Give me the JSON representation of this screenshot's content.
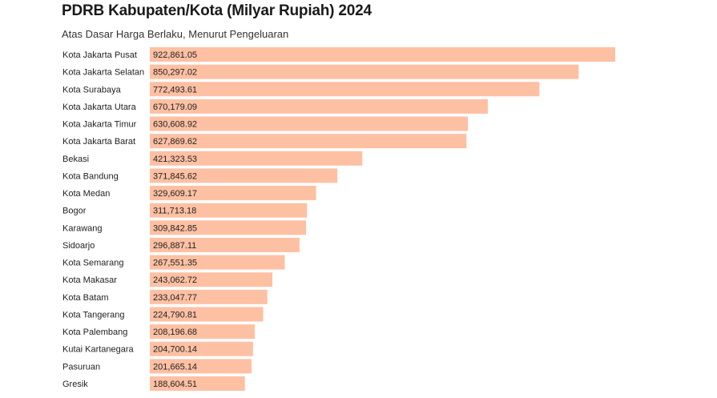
{
  "header": {
    "title": "PDRB Kabupaten/Kota (Milyar Rupiah) 2024",
    "subtitle": "Atas Dasar Harga Berlaku, Menurut Pengeluaran"
  },
  "colors": {
    "bar": "#fec0a3",
    "text": "#222222"
  },
  "chart_data": {
    "type": "bar",
    "orientation": "horizontal",
    "title": "PDRB Kabupaten/Kota (Milyar Rupiah) 2024",
    "subtitle": "Atas Dasar Harga Berlaku, Menurut Pengeluaran",
    "categories": [
      "Kota Jakarta Pusat",
      "Kota Jakarta Selatan",
      "Kota Surabaya",
      "Kota Jakarta Utara",
      "Kota Jakarta Timur",
      "Kota Jakarta Barat",
      "Bekasi",
      "Kota Bandung",
      "Kota Medan",
      "Bogor",
      "Karawang",
      "Sidoarjo",
      "Kota Semarang",
      "Kota Makasar",
      "Kota Batam",
      "Kota Tangerang",
      "Kota Palembang",
      "Kutai Kartanegara",
      "Pasuruan",
      "Gresik"
    ],
    "values": [
      922861.05,
      850297.02,
      772493.61,
      670179.09,
      630608.92,
      627869.62,
      421323.53,
      371845.62,
      329609.17,
      311713.18,
      309842.85,
      296887.11,
      267551.35,
      243062.72,
      233047.77,
      224790.81,
      208196.68,
      204700.14,
      201665.14,
      188604.51
    ],
    "value_labels": [
      "922,861.05",
      "850,297.02",
      "772,493.61",
      "670,179.09",
      "630,608.92",
      "627,869.62",
      "421,323.53",
      "371,845.62",
      "329,609.17",
      "311,713.18",
      "309,842.85",
      "296,887.11",
      "267,551.35",
      "243,062.72",
      "233,047.77",
      "224,790.81",
      "208,196.68",
      "204,700.14",
      "201,665.14",
      "188,604.51"
    ],
    "xlim": [
      0,
      922861.05
    ],
    "grid": false,
    "legend": "none"
  }
}
